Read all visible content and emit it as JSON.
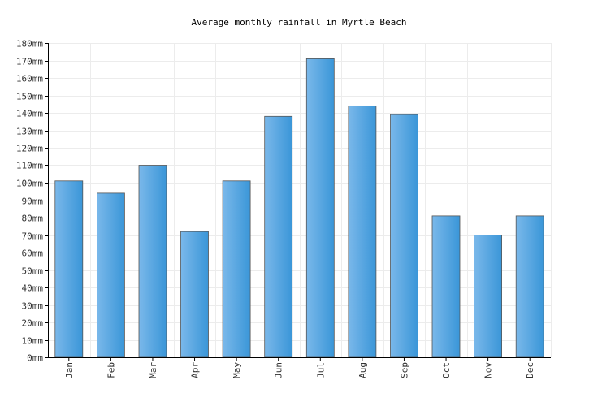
{
  "chart_data": {
    "type": "bar",
    "title": "Average monthly rainfall in Myrtle Beach",
    "xlabel": "",
    "ylabel": "",
    "unit": "mm",
    "categories": [
      "Jan",
      "Feb",
      "Mar",
      "Apr",
      "May",
      "Jun",
      "Jul",
      "Aug",
      "Sep",
      "Oct",
      "Nov",
      "Dec"
    ],
    "values": [
      101,
      94,
      110,
      72,
      101,
      138,
      171,
      144,
      139,
      81,
      70,
      81
    ],
    "ylim": [
      0,
      180
    ],
    "ytick_step": 10,
    "yticks": [
      "0mm",
      "10mm",
      "20mm",
      "30mm",
      "40mm",
      "50mm",
      "60mm",
      "70mm",
      "80mm",
      "90mm",
      "100mm",
      "110mm",
      "120mm",
      "130mm",
      "140mm",
      "150mm",
      "160mm",
      "170mm",
      "180mm"
    ],
    "grid": true,
    "legend": "none",
    "colors": {
      "bar_light": "#7ab8ea",
      "bar_dark": "#3a96d8",
      "bar_stroke": "#555555",
      "grid": "#ececec",
      "axis": "#000000"
    }
  }
}
